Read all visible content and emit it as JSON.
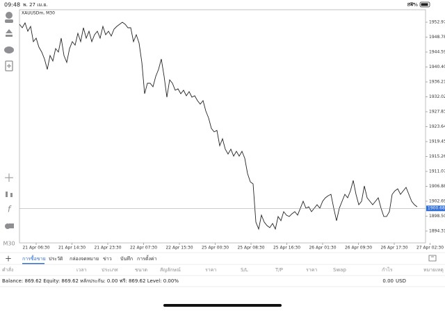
{
  "status_bar": {
    "time": "09:48",
    "date": "พ. 27 เม.ย.",
    "battery": "84%"
  },
  "sidebar": {
    "timeframe": "M30"
  },
  "chart_data": {
    "type": "line",
    "title": "XAUUSDm, M30",
    "color": "#222222",
    "values": [
      1952.39,
      1951.41,
      1952.77,
      1950.44,
      1951.8,
      1947.51,
      1948.49,
      1945.95,
      1944.59,
      1942.64,
      1939.72,
      1943.61,
      1942.06,
      1945.56,
      1944.59,
      1948.49,
      1943.61,
      1941.67,
      1945.56,
      1947.51,
      1946.54,
      1949.85,
      1947.51,
      1951.41,
      1948.49,
      1950.44,
      1947.51,
      1949.46,
      1950.44,
      1948.49,
      1951.8,
      1949.46,
      1950.44,
      1949.07,
      1951.02,
      1951.8,
      1952.39,
      1952.97,
      1952.39,
      1951.41,
      1951.41,
      1947.51,
      1949.46,
      1947.12,
      1941.67,
      1932.89,
      1935.82,
      1935.82,
      1934.85,
      1937.77,
      1939.72,
      1942.64,
      1937.77,
      1931.92,
      1936.79,
      1935.82,
      1933.87,
      1934.26,
      1932.89,
      1933.87,
      1932.31,
      1933.48,
      1931.92,
      1932.31,
      1930.94,
      1929.97,
      1930.94,
      1928.02,
      1926.07,
      1923.15,
      1922.18,
      1922.57,
      1918.28,
      1920.23,
      1917.31,
      1915.94,
      1917.31,
      1915.36,
      1916.72,
      1915.36,
      1916.72,
      1914.77,
      1910.48,
      1908.14,
      1907.56,
      1896.84,
      1894.89,
      1898.79,
      1896.84,
      1895.86,
      1895.28,
      1896.45,
      1894.89,
      1898.4,
      1897.23,
      1899.76,
      1898.79,
      1898.4,
      1899.18,
      1899.76,
      1898.79,
      1900.73,
      1902.68,
      1900.73,
      1901.12,
      1899.76,
      1900.73,
      1901.71,
      1900.73,
      1902.68,
      1903.66,
      1904.24,
      1904.63,
      1900.73,
      1897.23,
      1900.73,
      1902.68,
      1904.63,
      1903.66,
      1905.61,
      1908.53,
      1904.63,
      1901.71,
      1902.68,
      1906.97,
      1903.66,
      1902.68,
      1901.71,
      1902.68,
      1903.66,
      1900.73,
      1898.4,
      1898.4,
      1899.76,
      1904.63,
      1905.61,
      1906.19,
      1904.63,
      1905.61,
      1906.58,
      1904.63,
      1902.68,
      1901.71,
      1901.12
    ],
    "xlim": [
      0,
      146
    ],
    "xticks": [
      {
        "value": 6,
        "label": "21 Apr 06:30"
      },
      {
        "value": 18.875,
        "label": "21 Apr 14:30"
      },
      {
        "value": 31.75,
        "label": "21 Apr 23:30"
      },
      {
        "value": 44.625,
        "label": "22 Apr 07:30"
      },
      {
        "value": 57.5,
        "label": "22 Apr 15:30"
      },
      {
        "value": 70.375,
        "label": "25 Apr 00:30"
      },
      {
        "value": 83.25,
        "label": "25 Apr 08:30"
      },
      {
        "value": 96.125,
        "label": "25 Apr 16:30"
      },
      {
        "value": 109,
        "label": "26 Apr 01:30"
      },
      {
        "value": 121.875,
        "label": "26 Apr 09:30"
      },
      {
        "value": 134.75,
        "label": "26 Apr 17:30"
      },
      {
        "value": 147.625,
        "label": "27 Apr 02:30"
      }
    ],
    "ylim": [
      1890.99,
      1956.48
    ],
    "yticks": [
      {
        "value": 1952.97,
        "label": "1952.970"
      },
      {
        "value": 1948.78,
        "label": "1948.780"
      },
      {
        "value": 1944.59,
        "label": "1944.590"
      },
      {
        "value": 1940.4,
        "label": "1940.400"
      },
      {
        "value": 1936.21,
        "label": "1936.210"
      },
      {
        "value": 1932.02,
        "label": "1932.020"
      },
      {
        "value": 1927.83,
        "label": "1927.830"
      },
      {
        "value": 1923.64,
        "label": "1923.640"
      },
      {
        "value": 1919.45,
        "label": "1919.450"
      },
      {
        "value": 1915.26,
        "label": "1915.260"
      },
      {
        "value": 1911.07,
        "label": "1911.070"
      },
      {
        "value": 1906.88,
        "label": "1906.880"
      },
      {
        "value": 1902.69,
        "label": "1902.690"
      },
      {
        "value": 1898.5,
        "label": "1898.500"
      },
      {
        "value": 1894.31,
        "label": "1894.310"
      }
    ],
    "current_price": {
      "value": 1900.689,
      "label": "1900.689"
    }
  },
  "tabs": [
    "การซื้อขาย",
    "ประวัติ",
    "กล่องจดหมาย",
    "ข่าว",
    "บันทึก",
    "การตั้งค่า"
  ],
  "columns": [
    "คำสั่ง",
    "เวลา",
    "ประเภท",
    "ขนาด",
    "สัญลักษณ์",
    "ราคา",
    "S/L",
    "T/P",
    "ราคา",
    "Swap",
    "กำไร",
    "หมายเหตุ"
  ],
  "balance": {
    "summary": "Balance: 869.62 Equity: 869.62 หลักประกัน: 0.00 ฟรี: 869.62 Level: 0.00%",
    "profit": "0.00",
    "currency": "USD"
  }
}
